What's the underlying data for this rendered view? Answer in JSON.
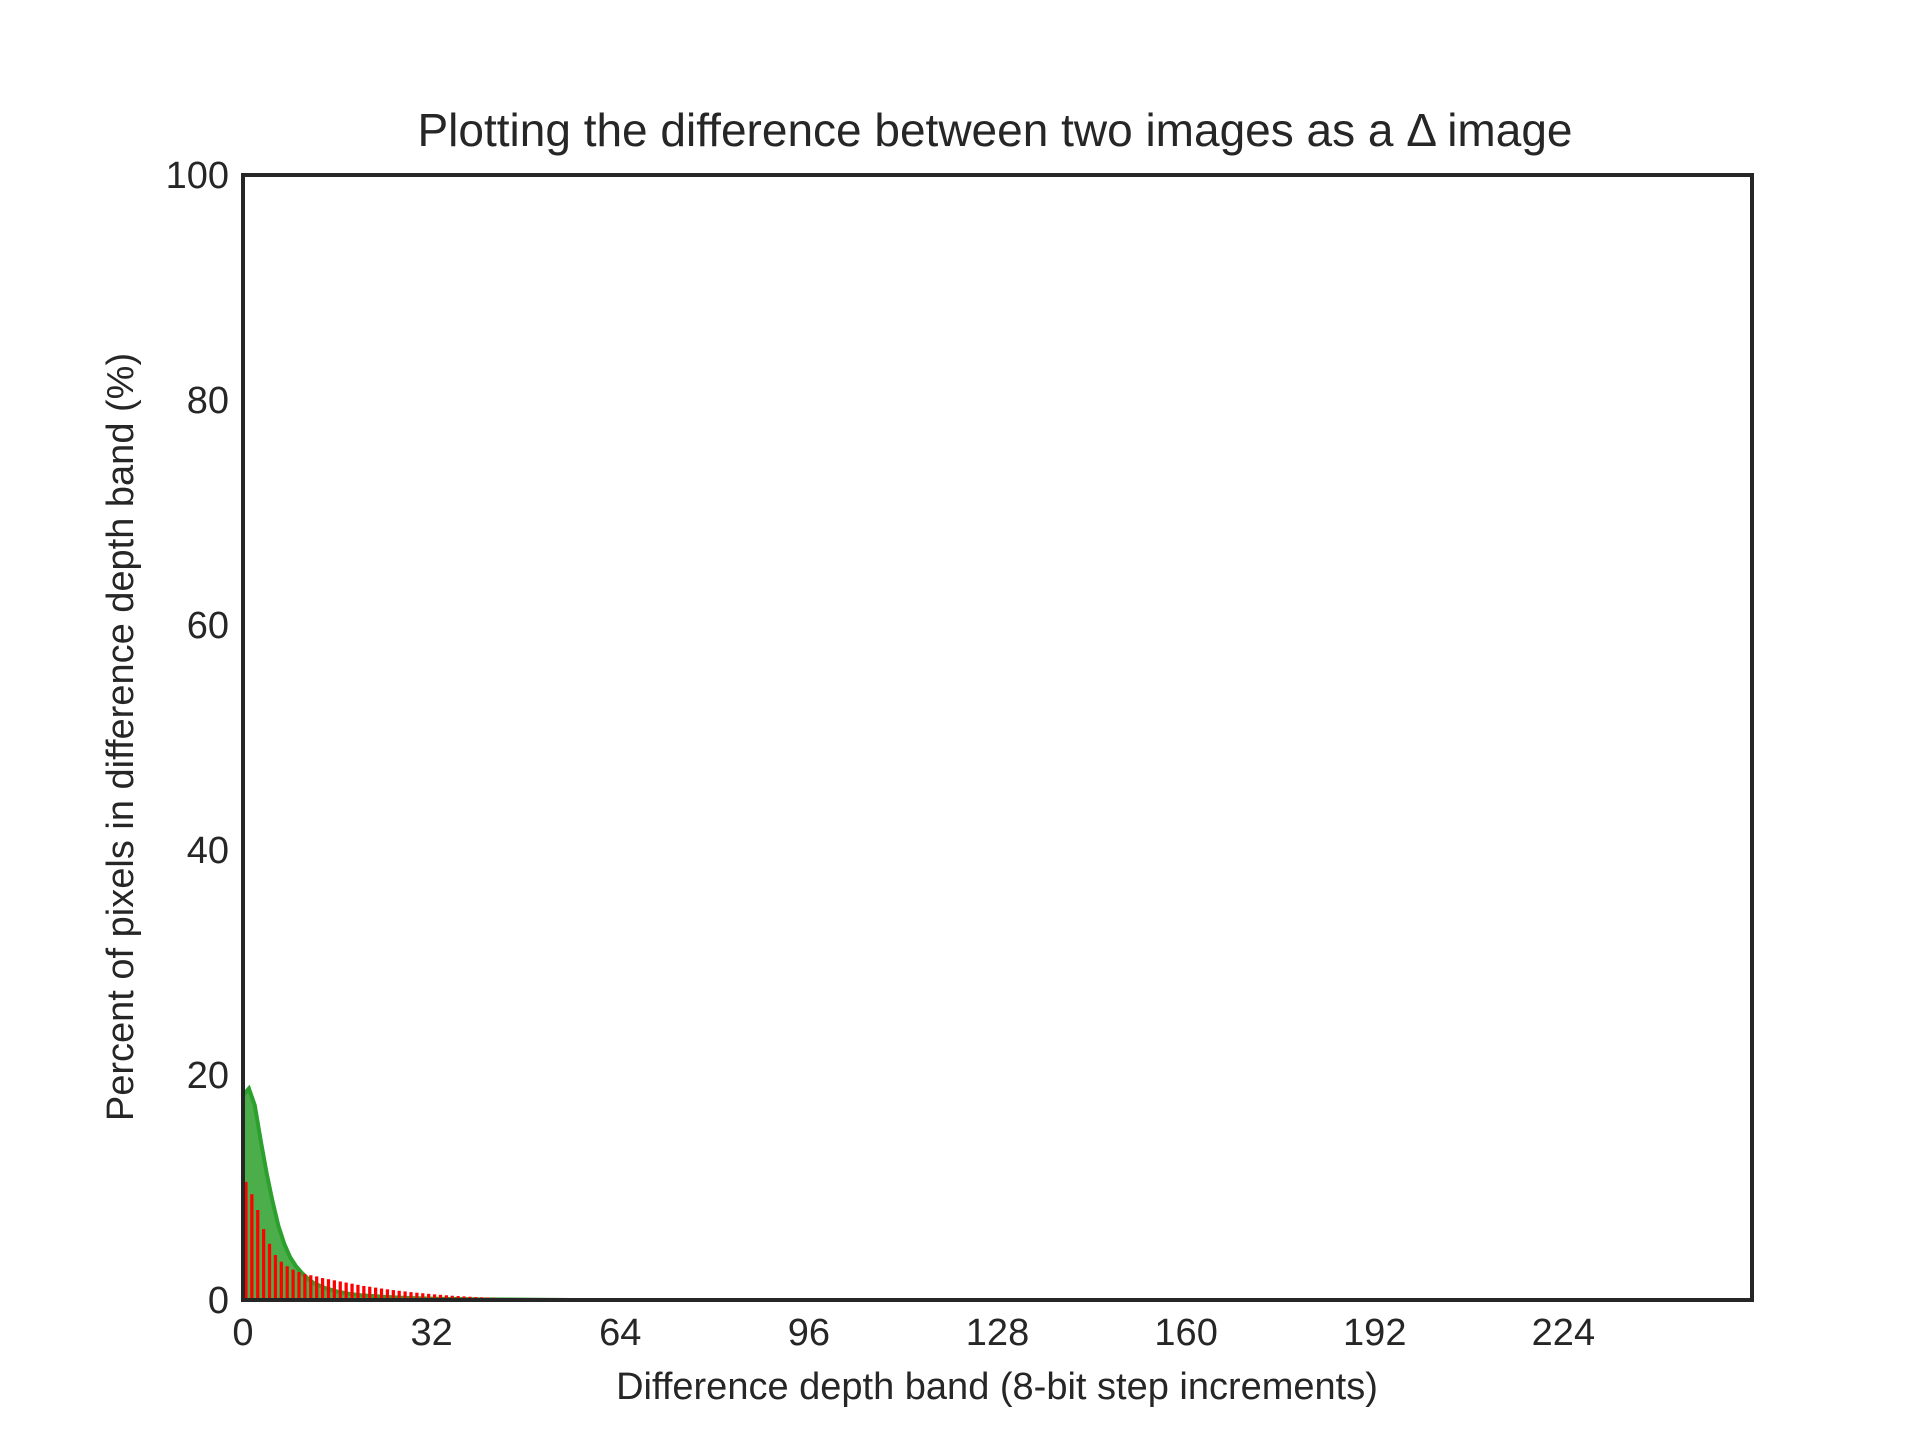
{
  "chart_data": {
    "type": "bar",
    "title": "Plotting the difference between two images as a Δ image",
    "xlabel": "Difference depth band (8-bit step increments)",
    "ylabel": "Percent of pixels in difference depth band (%)",
    "xlim": [
      0,
      256
    ],
    "ylim": [
      0,
      100
    ],
    "xticks": [
      0,
      32,
      64,
      96,
      128,
      160,
      192,
      224
    ],
    "yticks": [
      0,
      20,
      40,
      60,
      80,
      100
    ],
    "grid": false,
    "colors": {
      "area": "#2ca02c",
      "bars": "#ff0000"
    },
    "series": [
      {
        "type": "area",
        "x": [
          0,
          1,
          2,
          3,
          4,
          5,
          6,
          7,
          8,
          9,
          10,
          11,
          12,
          14,
          16,
          18,
          20,
          24,
          28,
          32,
          40,
          48,
          56
        ],
        "values": [
          18.2,
          18.8,
          17.3,
          14.2,
          11.3,
          8.8,
          6.6,
          5.0,
          3.8,
          3.0,
          2.4,
          1.9,
          1.5,
          1.05,
          0.75,
          0.55,
          0.42,
          0.28,
          0.18,
          0.12,
          0.06,
          0.03,
          0.0
        ]
      },
      {
        "type": "bar",
        "x": [
          1,
          2,
          3,
          4,
          5,
          6,
          7,
          8,
          9,
          10,
          11,
          12,
          13,
          14,
          15,
          16,
          17,
          18,
          19,
          20,
          21,
          22,
          23,
          24,
          25,
          26,
          27,
          28,
          29,
          30,
          31,
          32,
          33,
          34,
          35,
          36,
          37,
          38,
          39,
          40,
          41,
          42,
          43,
          44,
          45,
          46,
          47,
          48,
          49,
          50,
          51,
          52,
          53,
          54,
          55,
          56
        ],
        "values": [
          10.5,
          9.4,
          8.0,
          6.3,
          5.0,
          4.0,
          3.4,
          3.0,
          2.7,
          2.5,
          2.3,
          2.2,
          2.1,
          1.95,
          1.85,
          1.75,
          1.65,
          1.55,
          1.45,
          1.35,
          1.25,
          1.18,
          1.1,
          1.02,
          0.95,
          0.88,
          0.82,
          0.76,
          0.7,
          0.65,
          0.6,
          0.55,
          0.5,
          0.46,
          0.42,
          0.38,
          0.35,
          0.32,
          0.29,
          0.26,
          0.24,
          0.22,
          0.2,
          0.18,
          0.16,
          0.14,
          0.12,
          0.1,
          0.09,
          0.08,
          0.07,
          0.06,
          0.05,
          0.04,
          0.03,
          0.02
        ]
      }
    ]
  }
}
